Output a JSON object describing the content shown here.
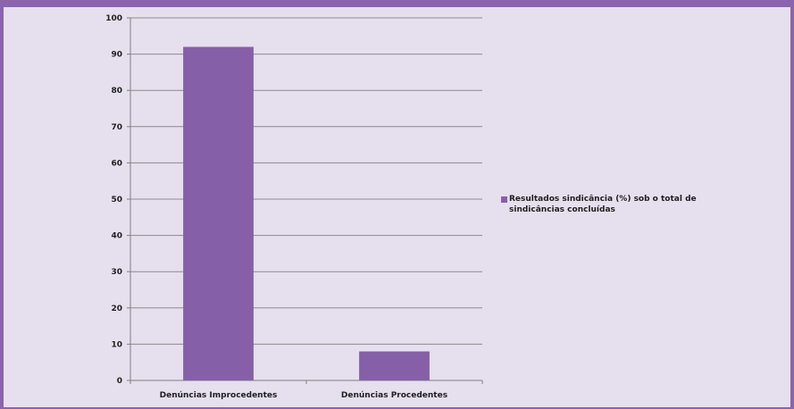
{
  "colors": {
    "bar": "#8560a8",
    "grid": "#8c8c8c",
    "axis": "#7f7f7f",
    "frame": "#8a64ad",
    "background": "#e6dfee"
  },
  "chart_data": {
    "type": "bar",
    "categories": [
      "Denúncias Improcedentes",
      "Denúncias Procedentes"
    ],
    "series": [
      {
        "name": "Resultados sindicância (%) sob o total de sindicâncias concluídas",
        "values": [
          92,
          8
        ]
      }
    ],
    "ylim": [
      0,
      100
    ],
    "yticks": [
      0,
      10,
      20,
      30,
      40,
      50,
      60,
      70,
      80,
      90,
      100
    ],
    "grid": true,
    "legend_position": "right"
  }
}
